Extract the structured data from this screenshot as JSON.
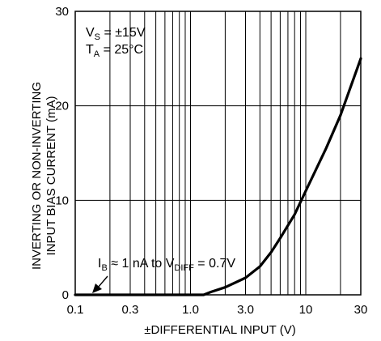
{
  "chart_data": {
    "type": "line",
    "xscale": "log",
    "xlim": [
      0.1,
      30
    ],
    "ylim": [
      0,
      30
    ],
    "grid": true,
    "x_ticks": [
      0.1,
      0.3,
      1.0,
      3.0,
      10,
      30
    ],
    "x_tick_labels": [
      "0.1",
      "0.3",
      "1.0",
      "3.0",
      "10",
      "30"
    ],
    "y_ticks": [
      0,
      10,
      20,
      30
    ],
    "y_tick_labels": [
      "0",
      "10",
      "20",
      "30"
    ],
    "xlabel": "±DIFFERENTIAL INPUT (V)",
    "ylabel_line1": "INVERTING OR NON-INVERTING",
    "ylabel_line2": "INPUT BIAS CURRENT (mA)",
    "annotations": {
      "vs": {
        "main": "V",
        "sub": "S",
        "rest": " = ±15V"
      },
      "ta": {
        "main": "T",
        "sub": "A",
        "rest": " = 25°C"
      },
      "ib": {
        "main": "I",
        "sub": "B",
        "mid": " ≈ 1 nA to V",
        "sub2": "DIFF",
        "rest": " = 0.7V"
      }
    },
    "series": [
      {
        "x": [
          0.1,
          0.2,
          0.5,
          1.0,
          1.3,
          1.5,
          2.0,
          3.0,
          4.0,
          5.0,
          6.0,
          8.0,
          10,
          15,
          20,
          30
        ],
        "y": [
          0,
          0,
          0,
          0,
          0,
          0.3,
          0.8,
          1.8,
          3.0,
          4.5,
          6.0,
          8.5,
          11,
          15.5,
          19,
          25
        ]
      }
    ]
  }
}
